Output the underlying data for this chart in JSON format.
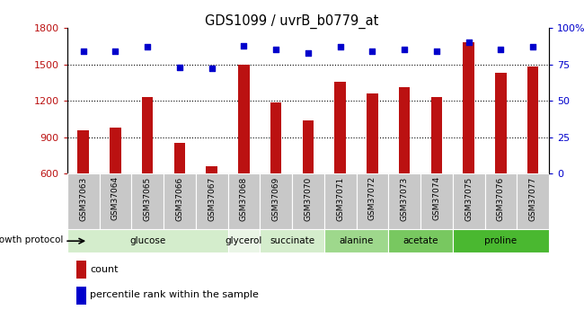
{
  "title": "GDS1099 / uvrB_b0779_at",
  "samples": [
    "GSM37063",
    "GSM37064",
    "GSM37065",
    "GSM37066",
    "GSM37067",
    "GSM37068",
    "GSM37069",
    "GSM37070",
    "GSM37071",
    "GSM37072",
    "GSM37073",
    "GSM37074",
    "GSM37075",
    "GSM37076",
    "GSM37077"
  ],
  "counts": [
    960,
    980,
    1230,
    855,
    660,
    1500,
    1185,
    1040,
    1360,
    1260,
    1310,
    1230,
    1680,
    1430,
    1480
  ],
  "percentiles": [
    84,
    84,
    87,
    73,
    72,
    88,
    85,
    83,
    87,
    84,
    85,
    84,
    90,
    85,
    87
  ],
  "groups": [
    {
      "name": "glucose",
      "start": 0,
      "end": 5,
      "color": "#d4edcc"
    },
    {
      "name": "glycerol",
      "start": 5,
      "end": 6,
      "color": "#eaf5e6"
    },
    {
      "name": "succinate",
      "start": 6,
      "end": 8,
      "color": "#d4edcc"
    },
    {
      "name": "alanine",
      "start": 8,
      "end": 10,
      "color": "#9ed88c"
    },
    {
      "name": "acetate",
      "start": 10,
      "end": 12,
      "color": "#78c860"
    },
    {
      "name": "proline",
      "start": 12,
      "end": 15,
      "color": "#4ab830"
    }
  ],
  "bar_color": "#bb1111",
  "dot_color": "#0000cc",
  "ylim_left": [
    600,
    1800
  ],
  "ylim_right": [
    0,
    100
  ],
  "yticks_left": [
    600,
    900,
    1200,
    1500,
    1800
  ],
  "yticks_right": [
    0,
    25,
    50,
    75,
    100
  ],
  "ytick_labels_right": [
    "0",
    "25",
    "50",
    "75",
    "100%"
  ],
  "grid_values": [
    900,
    1200,
    1500
  ],
  "xtick_bg": "#d0d0d0"
}
